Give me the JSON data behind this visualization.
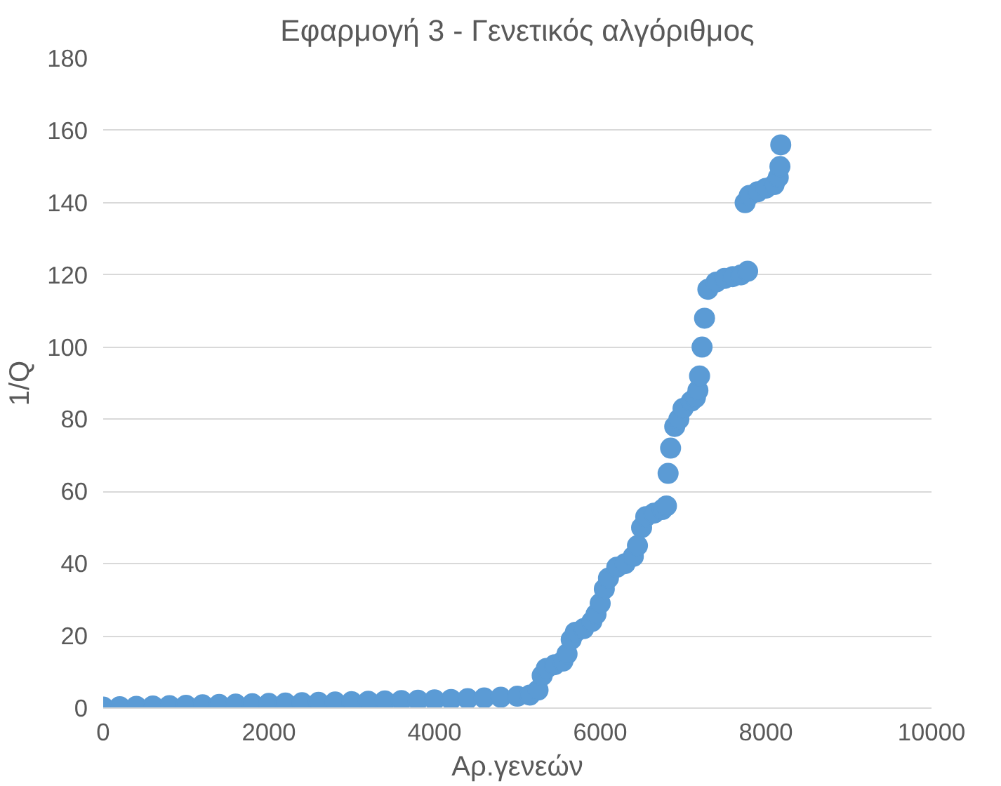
{
  "chart_data": {
    "type": "scatter",
    "title": "Εφαρμογή 3 - Γενετικός αλγόριθμος",
    "xlabel": "Αρ.γενεών",
    "ylabel": "1/Q",
    "x": [
      0,
      200,
      400,
      600,
      800,
      1000,
      1200,
      1400,
      1600,
      1800,
      2000,
      2200,
      2400,
      2600,
      2800,
      3000,
      3200,
      3400,
      3600,
      3800,
      4000,
      4200,
      4400,
      4600,
      4800,
      5000,
      5150,
      5250,
      5300,
      5350,
      5450,
      5550,
      5600,
      5650,
      5700,
      5800,
      5900,
      5950,
      6000,
      6050,
      6100,
      6200,
      6300,
      6400,
      6450,
      6500,
      6550,
      6650,
      6750,
      6800,
      6820,
      6850,
      6900,
      6950,
      7000,
      7100,
      7150,
      7180,
      7200,
      7230,
      7260,
      7300,
      7400,
      7500,
      7600,
      7700,
      7780,
      7750,
      7800,
      7900,
      8000,
      8100,
      8150,
      8170,
      8180
    ],
    "values": [
      0.3,
      0.4,
      0.5,
      0.6,
      0.7,
      0.8,
      0.9,
      1.0,
      1.1,
      1.2,
      1.3,
      1.4,
      1.5,
      1.6,
      1.7,
      1.8,
      1.9,
      2.0,
      2.1,
      2.2,
      2.3,
      2.4,
      2.6,
      2.8,
      3.0,
      3.3,
      3.6,
      5,
      9,
      11,
      12,
      13,
      15,
      19,
      21,
      22,
      24,
      26,
      29,
      33,
      36,
      39,
      40,
      42,
      45,
      50,
      53,
      54,
      55,
      56,
      65,
      72,
      78,
      80,
      83,
      85,
      86,
      88,
      92,
      100,
      108,
      116,
      118,
      119,
      119.5,
      120,
      121,
      140,
      142,
      143,
      144,
      145,
      147,
      150,
      156
    ],
    "color": "#5b9bd5",
    "marker": "circle",
    "xlim": [
      0,
      10000
    ],
    "xticks": [
      0,
      2000,
      4000,
      6000,
      8000,
      10000
    ],
    "ylim": [
      0,
      180
    ],
    "yticks": [
      0,
      20,
      40,
      60,
      80,
      100,
      120,
      140,
      160,
      180
    ],
    "grid": "y"
  }
}
